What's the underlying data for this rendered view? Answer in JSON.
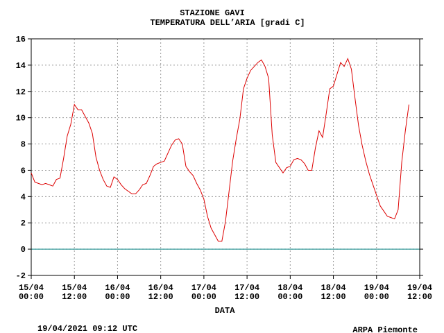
{
  "chart_data": {
    "type": "line",
    "title": "STAZIONE GAVI",
    "subtitle": "TEMPERATURA DELL’ARIA [gradi C]",
    "x_label": "DATA",
    "timestamp": "19/04/2021 09:12 UTC",
    "source": "ARPA Piemonte",
    "source_color": "#1a1aa6",
    "grid": true,
    "zero_line_color": "#008080",
    "ylim": [
      -2,
      16
    ],
    "yticks": [
      -2,
      0,
      2,
      4,
      6,
      8,
      10,
      12,
      14,
      16
    ],
    "xlim": [
      "15/04 00:00",
      "19/04 12:00"
    ],
    "xticks": [
      "15/04 00:00",
      "15/04 12:00",
      "16/04 00:00",
      "16/04 12:00",
      "17/04 00:00",
      "17/04 12:00",
      "18/04 00:00",
      "18/04 12:00",
      "19/04 00:00",
      "19/04 12:00"
    ],
    "x": [
      "15/04 00:00",
      "15/04 01:00",
      "15/04 02:00",
      "15/04 03:00",
      "15/04 04:00",
      "15/04 05:00",
      "15/04 06:00",
      "15/04 07:00",
      "15/04 08:00",
      "15/04 09:00",
      "15/04 10:00",
      "15/04 11:00",
      "15/04 12:00",
      "15/04 13:00",
      "15/04 14:00",
      "15/04 15:00",
      "15/04 16:00",
      "15/04 17:00",
      "15/04 18:00",
      "15/04 19:00",
      "15/04 20:00",
      "15/04 21:00",
      "15/04 22:00",
      "15/04 23:00",
      "16/04 00:00",
      "16/04 01:00",
      "16/04 02:00",
      "16/04 03:00",
      "16/04 04:00",
      "16/04 05:00",
      "16/04 06:00",
      "16/04 07:00",
      "16/04 08:00",
      "16/04 09:00",
      "16/04 10:00",
      "16/04 11:00",
      "16/04 12:00",
      "16/04 13:00",
      "16/04 14:00",
      "16/04 15:00",
      "16/04 16:00",
      "16/04 17:00",
      "16/04 18:00",
      "16/04 19:00",
      "16/04 20:00",
      "16/04 21:00",
      "16/04 22:00",
      "16/04 23:00",
      "17/04 00:00",
      "17/04 01:00",
      "17/04 02:00",
      "17/04 03:00",
      "17/04 04:00",
      "17/04 05:00",
      "17/04 06:00",
      "17/04 07:00",
      "17/04 08:00",
      "17/04 09:00",
      "17/04 10:00",
      "17/04 11:00",
      "17/04 12:00",
      "17/04 13:00",
      "17/04 14:00",
      "17/04 15:00",
      "17/04 16:00",
      "17/04 17:00",
      "17/04 18:00",
      "17/04 19:00",
      "17/04 20:00",
      "17/04 21:00",
      "17/04 22:00",
      "17/04 23:00",
      "18/04 00:00",
      "18/04 01:00",
      "18/04 02:00",
      "18/04 03:00",
      "18/04 04:00",
      "18/04 05:00",
      "18/04 06:00",
      "18/04 07:00",
      "18/04 08:00",
      "18/04 09:00",
      "18/04 10:00",
      "18/04 11:00",
      "18/04 12:00",
      "18/04 13:00",
      "18/04 14:00",
      "18/04 15:00",
      "18/04 16:00",
      "18/04 17:00",
      "18/04 18:00",
      "18/04 19:00",
      "18/04 20:00",
      "18/04 21:00",
      "18/04 22:00",
      "18/04 23:00",
      "19/04 00:00",
      "19/04 01:00",
      "19/04 02:00",
      "19/04 03:00",
      "19/04 04:00",
      "19/04 05:00",
      "19/04 06:00",
      "19/04 07:00",
      "19/04 08:00",
      "19/04 09:00"
    ],
    "series": [
      {
        "name": "Temperatura",
        "color": "#dd0000",
        "values": [
          5.8,
          5.1,
          5.0,
          4.9,
          5.0,
          4.9,
          4.8,
          5.3,
          5.4,
          6.9,
          8.6,
          9.5,
          11.0,
          10.6,
          10.6,
          10.1,
          9.6,
          8.8,
          7.0,
          6.0,
          5.3,
          4.8,
          4.7,
          5.5,
          5.3,
          4.9,
          4.6,
          4.4,
          4.2,
          4.2,
          4.5,
          4.9,
          5.0,
          5.6,
          6.3,
          6.5,
          6.6,
          6.7,
          7.3,
          7.9,
          8.3,
          8.4,
          8.0,
          6.3,
          5.9,
          5.6,
          5.0,
          4.5,
          3.8,
          2.5,
          1.6,
          1.1,
          0.6,
          0.6,
          2.1,
          4.4,
          6.7,
          8.4,
          9.9,
          12.2,
          13.0,
          13.6,
          13.9,
          14.2,
          14.4,
          13.9,
          13.0,
          8.7,
          6.6,
          6.2,
          5.8,
          6.2,
          6.3,
          6.8,
          6.9,
          6.8,
          6.5,
          6.0,
          6.0,
          7.7,
          9.0,
          8.5,
          10.3,
          12.2,
          12.4,
          13.3,
          14.2,
          13.9,
          14.5,
          13.7,
          11.5,
          9.4,
          7.9,
          6.7,
          5.7,
          4.9,
          4.1,
          3.3,
          2.9,
          2.5,
          2.4,
          2.3,
          3.0,
          6.6,
          9.0,
          11.0
        ]
      }
    ]
  }
}
